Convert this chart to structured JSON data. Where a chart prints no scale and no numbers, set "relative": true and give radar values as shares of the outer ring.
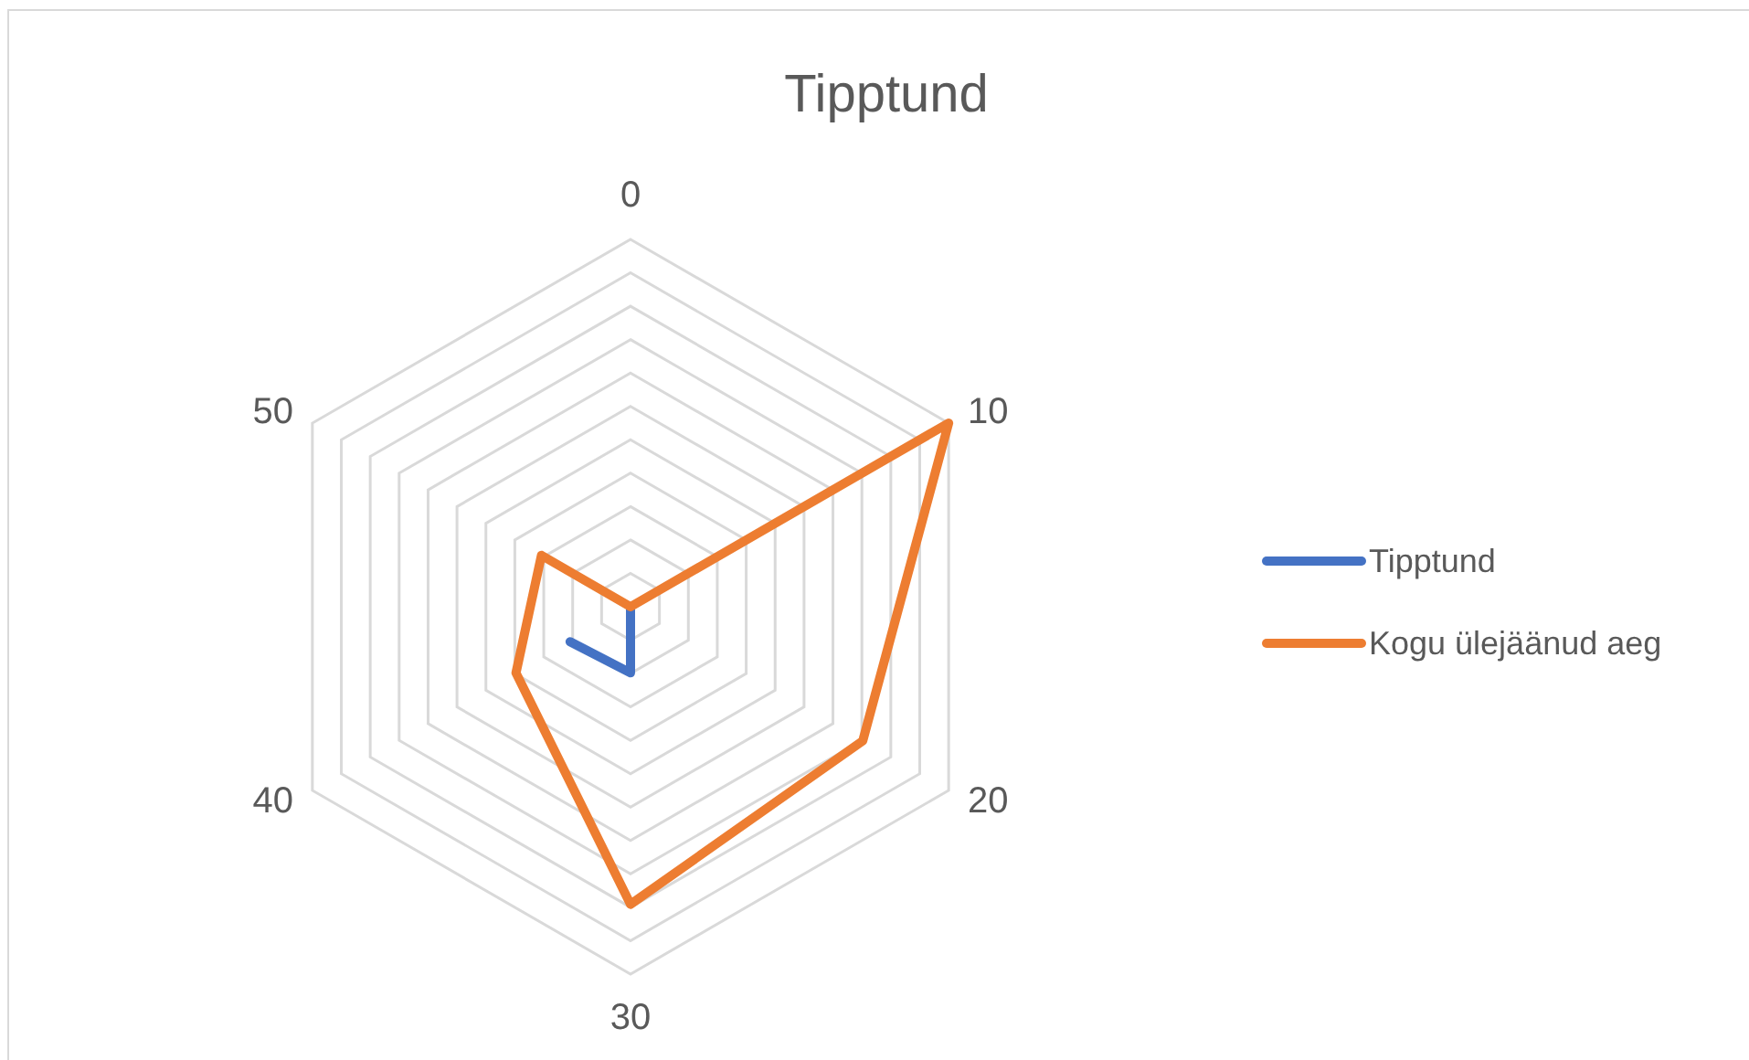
{
  "chart_data": {
    "type": "radar",
    "title": "Tipptund",
    "categories": [
      "0",
      "10",
      "20",
      "30",
      "40",
      "50"
    ],
    "relative": true,
    "series": [
      {
        "name": "Tipptund",
        "color": "#4472c4",
        "values": [
          0,
          0,
          0,
          0.18,
          0.19,
          null
        ]
      },
      {
        "name": "Kogu ülejäänud aeg",
        "color": "#ed7d31",
        "values": [
          0,
          1,
          0.73,
          0.81,
          0.36,
          0.28
        ]
      }
    ],
    "grid": true,
    "legend": "right",
    "line_style": "solid"
  }
}
